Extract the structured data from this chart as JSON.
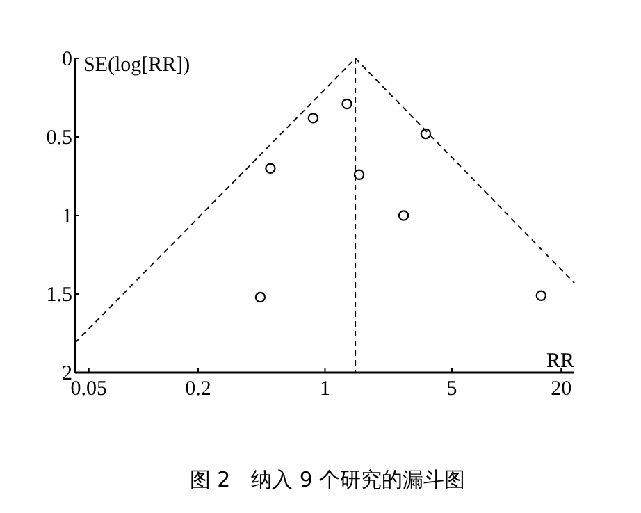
{
  "chart_data": {
    "type": "scatter",
    "title": "图 2　纳入 9 个研究的漏斗图",
    "xlabel": "RR",
    "ylabel": "SE(log[RR])",
    "log": "x",
    "xlim": [
      0.042,
      23.6
    ],
    "xticks": [
      0.05,
      0.2,
      1,
      5,
      20
    ],
    "ylim": [
      2,
      0
    ],
    "yticks": [
      0,
      0.5,
      1,
      1.5,
      2
    ],
    "grid": false,
    "series": [
      {
        "color": "#000000",
        "marker": "circle",
        "x": [
          0.5,
          0.86,
          1.32,
          1.54,
          3.59,
          2.71,
          0.44,
          15.5
        ],
        "values": [
          0.7,
          0.38,
          0.29,
          0.74,
          0.48,
          1.0,
          1.52,
          1.51
        ]
      },
      {
        "type": "line",
        "color": "#000000",
        "marker": "none",
        "line_style": "dashed",
        "x": [
          0.042,
          1.47,
          23.6
        ],
        "values": [
          1.81,
          0,
          1.43
        ]
      }
    ],
    "ref_lines": [
      {
        "axis": "x",
        "value": 1.47,
        "line_style": "dashed",
        "color": "#000000"
      }
    ]
  }
}
